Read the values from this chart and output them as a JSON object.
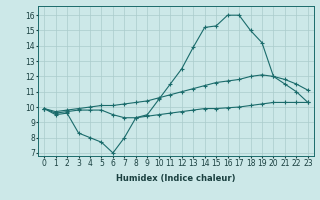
{
  "xlabel": "Humidex (Indice chaleur)",
  "bg_color": "#cce8e8",
  "grid_color": "#aacccc",
  "line_color": "#1a6b6b",
  "xlim": [
    -0.5,
    23.5
  ],
  "ylim": [
    6.8,
    16.6
  ],
  "xticks": [
    0,
    1,
    2,
    3,
    4,
    5,
    6,
    7,
    8,
    9,
    10,
    11,
    12,
    13,
    14,
    15,
    16,
    17,
    18,
    19,
    20,
    21,
    22,
    23
  ],
  "yticks": [
    7,
    8,
    9,
    10,
    11,
    12,
    13,
    14,
    15,
    16
  ],
  "line1_x": [
    0,
    1,
    2,
    3,
    4,
    5,
    6,
    7,
    8,
    9,
    10,
    11,
    12,
    13,
    14,
    15,
    16,
    17,
    18,
    19,
    20,
    21,
    22,
    23
  ],
  "line1_y": [
    9.9,
    9.5,
    9.6,
    8.3,
    8.0,
    7.7,
    7.0,
    8.0,
    9.3,
    9.5,
    10.5,
    11.5,
    12.5,
    13.9,
    15.2,
    15.3,
    16.0,
    16.0,
    15.0,
    14.2,
    12.0,
    11.5,
    11.0,
    10.3
  ],
  "line2_x": [
    0,
    1,
    2,
    3,
    4,
    5,
    6,
    7,
    8,
    9,
    10,
    11,
    12,
    13,
    14,
    15,
    16,
    17,
    18,
    19,
    20,
    21,
    22,
    23
  ],
  "line2_y": [
    9.9,
    9.7,
    9.8,
    9.9,
    10.0,
    10.1,
    10.1,
    10.2,
    10.3,
    10.4,
    10.6,
    10.8,
    11.0,
    11.2,
    11.4,
    11.6,
    11.7,
    11.8,
    12.0,
    12.1,
    12.0,
    11.8,
    11.5,
    11.1
  ],
  "line3_x": [
    0,
    1,
    2,
    3,
    4,
    5,
    6,
    7,
    8,
    9,
    10,
    11,
    12,
    13,
    14,
    15,
    16,
    17,
    18,
    19,
    20,
    21,
    22,
    23
  ],
  "line3_y": [
    9.9,
    9.6,
    9.7,
    9.8,
    9.8,
    9.8,
    9.5,
    9.3,
    9.3,
    9.4,
    9.5,
    9.6,
    9.7,
    9.8,
    9.9,
    9.9,
    9.95,
    10.0,
    10.1,
    10.2,
    10.3,
    10.3,
    10.3,
    10.3
  ],
  "tick_fontsize": 5.5,
  "xlabel_fontsize": 6.0
}
